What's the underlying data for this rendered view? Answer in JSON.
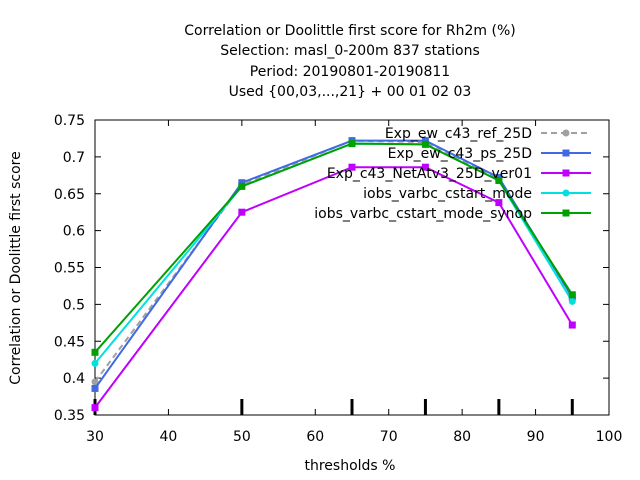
{
  "chart_data": {
    "type": "line",
    "title_lines": [
      "Correlation or Doolittle first score  for Rh2m (%)",
      "Selection: masl_0-200m    837 stations",
      "Period: 20190801-20190811",
      "Used {00,03,...,21} + 00 01 02 03"
    ],
    "xlabel": "thresholds %",
    "ylabel": "Correlation or Doolittle first score",
    "xlim": [
      30,
      100
    ],
    "ylim": [
      0.35,
      0.75
    ],
    "xticks": [
      30,
      40,
      50,
      60,
      70,
      80,
      90,
      100
    ],
    "yticks": [
      0.35,
      0.4,
      0.45,
      0.5,
      0.55,
      0.6,
      0.65,
      0.7,
      0.75
    ],
    "xtick_labels": [
      "30",
      "40",
      "50",
      "60",
      "70",
      "80",
      "90",
      "100"
    ],
    "ytick_labels": [
      "0.35",
      "0.4",
      "0.45",
      "0.5",
      "0.55",
      "0.6",
      "0.65",
      "0.7",
      "0.75"
    ],
    "threshold_markers": [
      30,
      50,
      65,
      75,
      85,
      95
    ],
    "x": [
      30,
      50,
      65,
      75,
      85,
      95
    ],
    "legend_position": "top-right",
    "grid": false,
    "series": [
      {
        "name": "Exp_ew_c43_ref_25D",
        "color": "#a0a0a0",
        "dashed": true,
        "marker": "circle",
        "values": [
          0.395,
          0.662,
          0.722,
          0.72,
          0.67,
          0.508
        ]
      },
      {
        "name": "Exp_ew_c43_ps_25D",
        "color": "#4169e1",
        "dashed": false,
        "marker": "square",
        "values": [
          0.386,
          0.665,
          0.722,
          0.722,
          0.672,
          0.51
        ]
      },
      {
        "name": "Exp_c43_NetAtv3_25D_ver01",
        "color": "#c000ff",
        "dashed": false,
        "marker": "square",
        "values": [
          0.36,
          0.625,
          0.686,
          0.686,
          0.638,
          0.472
        ]
      },
      {
        "name": "iobs_varbc_cstart_mode",
        "color": "#00e0e0",
        "dashed": false,
        "marker": "circle",
        "values": [
          0.42,
          0.66,
          0.718,
          0.717,
          0.668,
          0.504
        ]
      },
      {
        "name": "iobs_varbc_cstart_mode_synop",
        "color": "#00a000",
        "dashed": false,
        "marker": "square",
        "values": [
          0.435,
          0.66,
          0.718,
          0.717,
          0.668,
          0.513
        ]
      }
    ]
  }
}
